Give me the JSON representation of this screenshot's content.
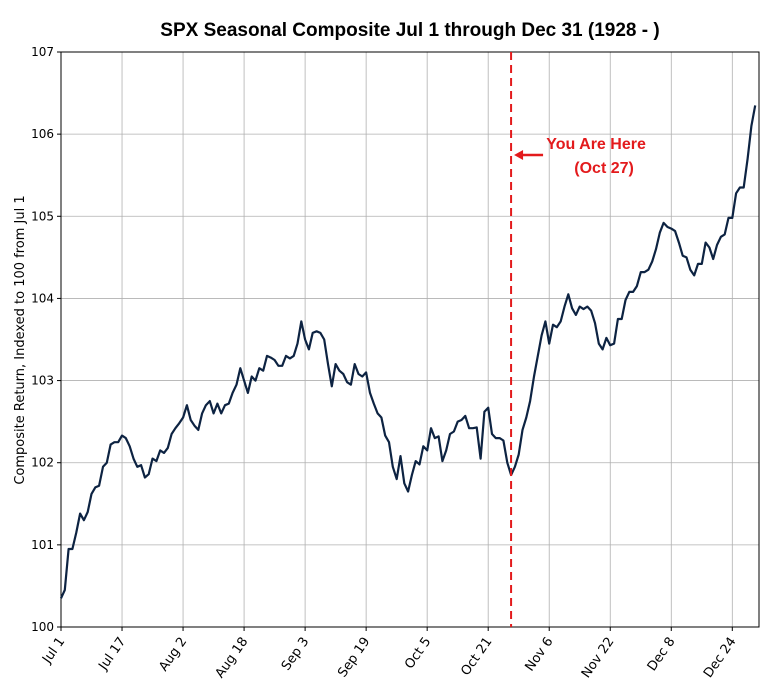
{
  "chart_data": {
    "type": "line",
    "title": "SPX Seasonal Composite Jul 1 through Dec 31 (1928 - )",
    "ylabel": "Composite Return, Indexed to 100 from Jul 1",
    "color": "#0d2342",
    "grid": true,
    "xlim": [
      0,
      183
    ],
    "ylim": [
      100,
      107
    ],
    "yticks": [
      100,
      101,
      102,
      103,
      104,
      105,
      106,
      107
    ],
    "xticks": [
      {
        "value": 0,
        "label": "Jul 1"
      },
      {
        "value": 16,
        "label": "Jul 17"
      },
      {
        "value": 32,
        "label": "Aug 2"
      },
      {
        "value": 48,
        "label": "Aug 18"
      },
      {
        "value": 64,
        "label": "Sep 3"
      },
      {
        "value": 80,
        "label": "Sep 19"
      },
      {
        "value": 96,
        "label": "Oct 5"
      },
      {
        "value": 112,
        "label": "Oct 21"
      },
      {
        "value": 128,
        "label": "Nov 6"
      },
      {
        "value": 144,
        "label": "Nov 22"
      },
      {
        "value": 160,
        "label": "Dec 8"
      },
      {
        "value": 176,
        "label": "Dec 24"
      }
    ],
    "x": [
      0,
      1,
      2,
      3,
      4,
      5,
      6,
      7,
      8,
      9,
      10,
      11,
      12,
      13,
      14,
      15,
      16,
      17,
      18,
      19,
      20,
      21,
      22,
      23,
      24,
      25,
      26,
      27,
      28,
      29,
      30,
      31,
      32,
      33,
      34,
      35,
      36,
      37,
      38,
      39,
      40,
      41,
      42,
      43,
      44,
      45,
      46,
      47,
      48,
      49,
      50,
      51,
      52,
      53,
      54,
      55,
      56,
      57,
      58,
      59,
      60,
      61,
      62,
      63,
      64,
      65,
      66,
      67,
      68,
      69,
      70,
      71,
      72,
      73,
      74,
      75,
      76,
      77,
      78,
      79,
      80,
      81,
      82,
      83,
      84,
      85,
      86,
      87,
      88,
      89,
      90,
      91,
      92,
      93,
      94,
      95,
      96,
      97,
      98,
      99,
      100,
      101,
      102,
      103,
      104,
      105,
      106,
      107,
      108,
      109,
      110,
      111,
      112,
      113,
      114,
      115,
      116,
      117,
      118,
      119,
      120,
      121,
      122,
      123,
      124,
      125,
      126,
      127,
      128,
      129,
      130,
      131,
      132,
      133,
      134,
      135,
      136,
      137,
      138,
      139,
      140,
      141,
      142,
      143,
      144,
      145,
      146,
      147,
      148,
      149,
      150,
      151,
      152,
      153,
      154,
      155,
      156,
      157,
      158,
      159,
      160,
      161,
      162,
      163,
      164,
      165,
      166,
      167,
      168,
      169,
      170,
      171,
      172,
      173,
      174,
      175,
      176,
      177,
      178,
      179,
      180,
      181,
      182
    ],
    "values": [
      100.35,
      100.45,
      100.95,
      100.95,
      101.15,
      101.38,
      101.3,
      101.4,
      101.62,
      101.7,
      101.72,
      101.95,
      102.0,
      102.22,
      102.25,
      102.25,
      102.33,
      102.3,
      102.2,
      102.05,
      101.95,
      101.97,
      101.82,
      101.86,
      102.05,
      102.02,
      102.15,
      102.12,
      102.18,
      102.35,
      102.42,
      102.48,
      102.55,
      102.7,
      102.52,
      102.45,
      102.4,
      102.6,
      102.7,
      102.75,
      102.6,
      102.72,
      102.6,
      102.7,
      102.72,
      102.85,
      102.95,
      103.15,
      103.0,
      102.85,
      103.05,
      103.0,
      103.15,
      103.12,
      103.3,
      103.28,
      103.25,
      103.18,
      103.18,
      103.3,
      103.27,
      103.3,
      103.45,
      103.72,
      103.5,
      103.38,
      103.58,
      103.6,
      103.58,
      103.5,
      103.2,
      102.93,
      103.2,
      103.12,
      103.08,
      102.98,
      102.95,
      103.2,
      103.08,
      103.05,
      103.1,
      102.85,
      102.72,
      102.6,
      102.55,
      102.33,
      102.25,
      101.95,
      101.8,
      102.08,
      101.75,
      101.65,
      101.85,
      102.02,
      101.98,
      102.2,
      102.15,
      102.42,
      102.3,
      102.32,
      102.02,
      102.15,
      102.35,
      102.38,
      102.5,
      102.52,
      102.57,
      102.42,
      102.42,
      102.43,
      102.05,
      102.62,
      102.67,
      102.35,
      102.3,
      102.3,
      102.27,
      102.0,
      101.85,
      101.95,
      102.1,
      102.4,
      102.55,
      102.75,
      103.05,
      103.3,
      103.55,
      103.72,
      103.45,
      103.68,
      103.65,
      103.72,
      103.9,
      104.05,
      103.88,
      103.8,
      103.9,
      103.87,
      103.9,
      103.85,
      103.7,
      103.45,
      103.38,
      103.52,
      103.43,
      103.45,
      103.75,
      103.75,
      103.98,
      104.08,
      104.08,
      104.15,
      104.32,
      104.32,
      104.35,
      104.45,
      104.6,
      104.8,
      104.92,
      104.87,
      104.85,
      104.82,
      104.68,
      104.52,
      104.5,
      104.35,
      104.28,
      104.42,
      104.42,
      104.68,
      104.62,
      104.48,
      104.65,
      104.75,
      104.78,
      104.98,
      104.98,
      105.28,
      105.35,
      105.35,
      105.7,
      106.1,
      106.35
    ],
    "vline": {
      "x": 118,
      "color": "#e31a1c",
      "label": "You Are Here",
      "sublabel": "(Oct 27)"
    }
  }
}
